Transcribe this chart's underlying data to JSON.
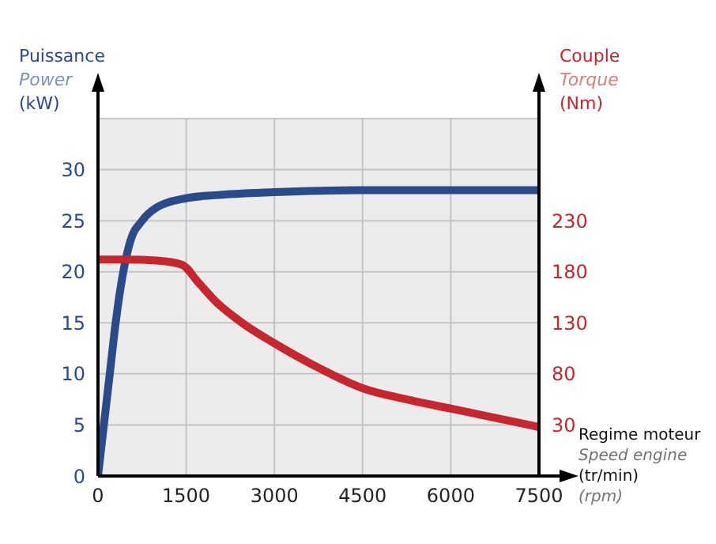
{
  "chart_data": {
    "type": "line",
    "ylabel": "Puissance\nPower\n(kW)",
    "y2label": "Couple\nTorque\n(Nm)",
    "xlabel": "Regime moteur\nSpeed engine\n(tr/min)\n(rpm)",
    "series": [
      {
        "color": "#2b4a8c",
        "x": [
          0,
          100,
          200,
          300,
          430,
          550,
          750,
          1000,
          1500,
          2000,
          3000,
          4500,
          7500
        ],
        "values": [
          0,
          5,
          10,
          15,
          20,
          23,
          25,
          26.3,
          27.2,
          27.5,
          27.8,
          28,
          28
        ]
      },
      {
        "color": "#c8262e",
        "axis": "y2",
        "x": [
          0,
          500,
          1000,
          1425,
          1700,
          2000,
          2500,
          3000,
          3750,
          4500,
          5250,
          6000,
          6750,
          7500
        ],
        "values": [
          192,
          192,
          191,
          187,
          170,
          151,
          128,
          110,
          86,
          66,
          55,
          46,
          37,
          28
        ]
      }
    ],
    "xlim": [
      0,
      7500
    ],
    "xticks": [
      0,
      1500,
      3000,
      4500,
      6000,
      7500
    ],
    "ylim": [
      0,
      35
    ],
    "yticks": [
      0,
      5,
      10,
      15,
      20,
      25,
      30
    ],
    "y2lim": [
      -20,
      330
    ],
    "y2ticks": [
      30,
      80,
      130,
      180,
      230
    ],
    "grid": true,
    "marker": "none",
    "line_style": "solid"
  }
}
